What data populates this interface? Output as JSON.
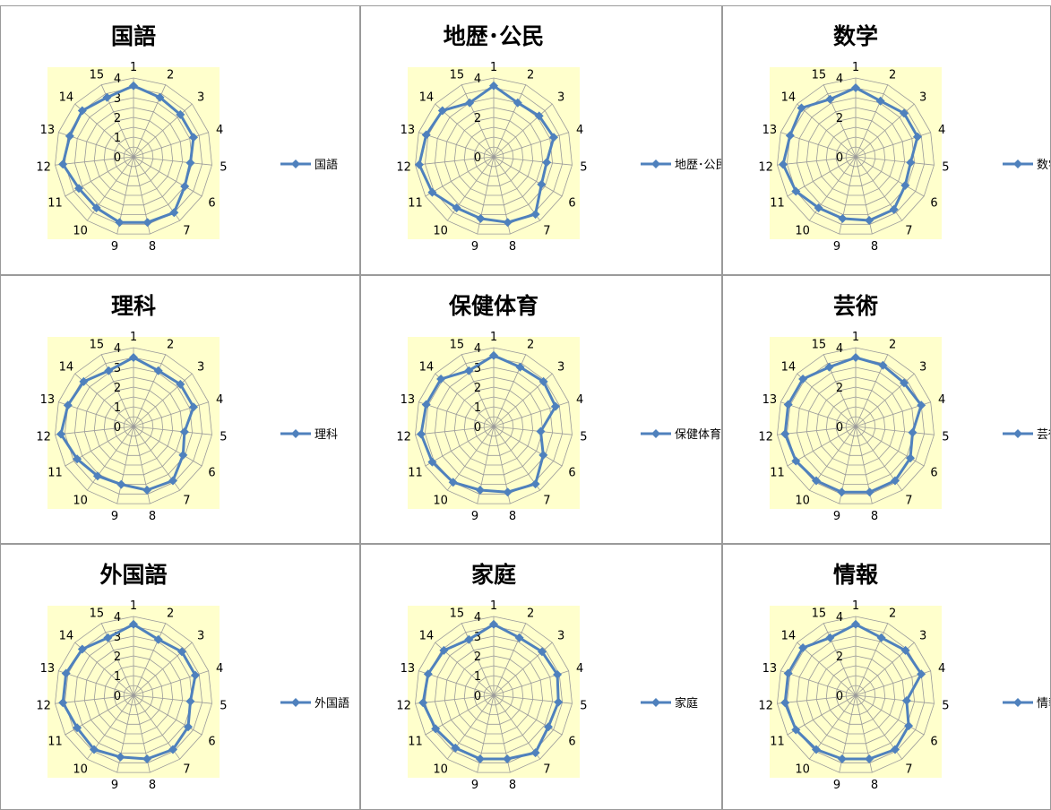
{
  "chart_data": [
    {
      "type": "radar",
      "title": "国語",
      "categories": [
        "1",
        "2",
        "3",
        "4",
        "5",
        "6",
        "7",
        "8",
        "9",
        "10",
        "11",
        "12",
        "13",
        "14",
        "15"
      ],
      "series": [
        {
          "name": "国語",
          "values": [
            3.6,
            3.3,
            3.2,
            3.2,
            2.9,
            3.0,
            3.5,
            3.4,
            3.4,
            3.2,
            3.2,
            3.6,
            3.4,
            3.5,
            3.3
          ]
        }
      ],
      "radial_ticks": [
        "0",
        "1",
        "2",
        "3",
        "4"
      ],
      "rlim": [
        0,
        4
      ],
      "legend": "right",
      "color": "#4F81BD",
      "plot_area_color": "#FFFFCC"
    },
    {
      "type": "radar",
      "title": "地歴･公民",
      "categories": [
        "1",
        "2",
        "3",
        "4",
        "5",
        "6",
        "7",
        "8",
        "9",
        "10",
        "11",
        "12",
        "13",
        "14",
        "15"
      ],
      "series": [
        {
          "name": "地歴･公民",
          "values": [
            3.6,
            3.0,
            3.1,
            3.2,
            2.7,
            2.8,
            3.6,
            3.4,
            3.2,
            3.2,
            3.6,
            3.8,
            3.6,
            3.5,
            3.0
          ]
        }
      ],
      "radial_ticks": [
        "0",
        "2",
        "4"
      ],
      "rlim": [
        0,
        4
      ],
      "legend": "right",
      "color": "#4F81BD",
      "plot_area_color": "#FFFFCC"
    },
    {
      "type": "radar",
      "title": "数学",
      "categories": [
        "1",
        "2",
        "3",
        "4",
        "5",
        "6",
        "7",
        "8",
        "9",
        "10",
        "11",
        "12",
        "13",
        "14",
        "15"
      ],
      "series": [
        {
          "name": "数学",
          "values": [
            3.5,
            3.1,
            3.3,
            3.3,
            2.8,
            2.9,
            3.3,
            3.3,
            3.2,
            3.2,
            3.5,
            3.7,
            3.5,
            3.7,
            3.2
          ]
        }
      ],
      "radial_ticks": [
        "0",
        "2",
        "4"
      ],
      "rlim": [
        0,
        4
      ],
      "legend": "right",
      "color": "#4F81BD",
      "plot_area_color": "#FFFFCC"
    },
    {
      "type": "radar",
      "title": "理科",
      "categories": [
        "1",
        "2",
        "3",
        "4",
        "5",
        "6",
        "7",
        "8",
        "9",
        "10",
        "11",
        "12",
        "13",
        "14",
        "15"
      ],
      "series": [
        {
          "name": "理科",
          "values": [
            3.5,
            3.1,
            3.2,
            3.2,
            2.6,
            2.9,
            3.4,
            3.3,
            3.0,
            3.1,
            3.3,
            3.7,
            3.5,
            3.4,
            3.1
          ]
        }
      ],
      "radial_ticks": [
        "0",
        "1",
        "2",
        "3",
        "4"
      ],
      "rlim": [
        0,
        4
      ],
      "legend": "right",
      "color": "#4F81BD",
      "plot_area_color": "#FFFFCC"
    },
    {
      "type": "radar",
      "title": "保健体育",
      "categories": [
        "1",
        "2",
        "3",
        "4",
        "5",
        "6",
        "7",
        "8",
        "9",
        "10",
        "11",
        "12",
        "13",
        "14",
        "15"
      ],
      "series": [
        {
          "name": "保健体育",
          "values": [
            3.6,
            3.3,
            3.4,
            3.3,
            2.4,
            2.9,
            3.6,
            3.4,
            3.3,
            3.5,
            3.6,
            3.7,
            3.6,
            3.6,
            3.1
          ]
        }
      ],
      "radial_ticks": [
        "0",
        "1",
        "2",
        "3",
        "4"
      ],
      "rlim": [
        0,
        4
      ],
      "legend": "right",
      "color": "#4F81BD",
      "plot_area_color": "#FFFFCC"
    },
    {
      "type": "radar",
      "title": "芸術",
      "categories": [
        "1",
        "2",
        "3",
        "4",
        "5",
        "6",
        "7",
        "8",
        "9",
        "10",
        "11",
        "12",
        "13",
        "14",
        "15"
      ],
      "series": [
        {
          "name": "芸術",
          "values": [
            3.5,
            3.4,
            3.3,
            3.5,
            2.9,
            3.2,
            3.4,
            3.4,
            3.4,
            3.4,
            3.5,
            3.6,
            3.6,
            3.6,
            3.3
          ]
        }
      ],
      "radial_ticks": [
        "0",
        "2",
        "4"
      ],
      "rlim": [
        0,
        4
      ],
      "legend": "right",
      "color": "#4F81BD",
      "plot_area_color": "#FFFFCC"
    },
    {
      "type": "radar",
      "title": "外国語",
      "categories": [
        "1",
        "2",
        "3",
        "4",
        "5",
        "6",
        "7",
        "8",
        "9",
        "10",
        "11",
        "12",
        "13",
        "14",
        "15"
      ],
      "series": [
        {
          "name": "外国語",
          "values": [
            3.6,
            3.1,
            3.3,
            3.3,
            2.9,
            3.2,
            3.4,
            3.3,
            3.2,
            3.4,
            3.3,
            3.6,
            3.6,
            3.5,
            3.2
          ]
        }
      ],
      "radial_ticks": [
        "0",
        "1",
        "2",
        "3",
        "4"
      ],
      "rlim": [
        0,
        4
      ],
      "legend": "right",
      "color": "#4F81BD",
      "plot_area_color": "#FFFFCC"
    },
    {
      "type": "radar",
      "title": "家庭",
      "categories": [
        "1",
        "2",
        "3",
        "4",
        "5",
        "6",
        "7",
        "8",
        "9",
        "10",
        "11",
        "12",
        "13",
        "14",
        "15"
      ],
      "series": [
        {
          "name": "家庭",
          "values": [
            3.6,
            3.2,
            3.3,
            3.4,
            3.3,
            3.2,
            3.6,
            3.3,
            3.3,
            3.3,
            3.4,
            3.6,
            3.5,
            3.4,
            3.1
          ]
        }
      ],
      "radial_ticks": [
        "0",
        "1",
        "2",
        "3",
        "4"
      ],
      "rlim": [
        0,
        4
      ],
      "legend": "right",
      "color": "#4F81BD",
      "plot_area_color": "#FFFFCC"
    },
    {
      "type": "radar",
      "title": "情報",
      "categories": [
        "1",
        "2",
        "3",
        "4",
        "5",
        "6",
        "7",
        "8",
        "9",
        "10",
        "11",
        "12",
        "13",
        "14",
        "15"
      ],
      "series": [
        {
          "name": "情報",
          "values": [
            3.6,
            3.2,
            3.4,
            3.5,
            2.6,
            3.1,
            3.4,
            3.3,
            3.3,
            3.4,
            3.5,
            3.6,
            3.6,
            3.6,
            3.2
          ]
        }
      ],
      "radial_ticks": [
        "0",
        "2",
        "4"
      ],
      "rlim": [
        0,
        4
      ],
      "legend": "right",
      "color": "#4F81BD",
      "plot_area_color": "#FFFFCC"
    }
  ]
}
